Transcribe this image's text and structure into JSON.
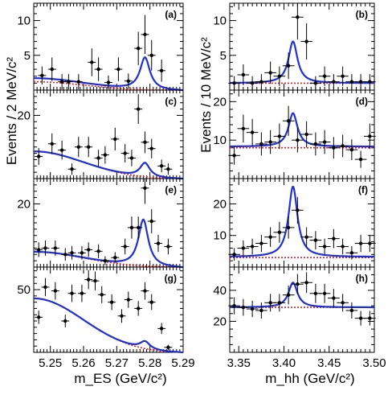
{
  "colors": {
    "fit": "#1f2fd6",
    "background": "#e02020",
    "data": "#000000"
  },
  "ylabel_left": "Events / 2 MeV/c²",
  "ylabel_right": "Events / 10 MeV/c²",
  "xlabel_left": "m_ES (GeV/c²)",
  "xlabel_right": "m_hh (GeV/c²)",
  "x_ticks_left": [
    "5.25",
    "5.26",
    "5.27",
    "5.28",
    "5.29"
  ],
  "x_ticks_right": [
    "3.35",
    "3.40",
    "3.45",
    "3.50"
  ],
  "chart_data": [
    {
      "type": "scatter",
      "label": "(a)",
      "xlim": [
        5.245,
        5.29
      ],
      "ylim": [
        0,
        12.5
      ],
      "yticks": [
        5,
        10
      ],
      "x": [
        5.2475,
        5.2505,
        5.2535,
        5.2555,
        5.2585,
        5.2625,
        5.2645,
        5.2675,
        5.2705,
        5.2735,
        5.2765,
        5.2785,
        5.2805,
        5.2835
      ],
      "y": [
        2.1,
        3.0,
        1.2,
        1.2,
        1.2,
        4.0,
        3.0,
        1.1,
        3.0,
        1.3,
        6.0,
        8.0,
        5.0,
        2.8
      ],
      "yerr": [
        1.3,
        1.7,
        1.1,
        1.1,
        1.1,
        2.0,
        1.7,
        1.0,
        1.7,
        1.1,
        2.4,
        2.8,
        2.2,
        1.6
      ],
      "fit_peak": 6.3,
      "fit_base": 1.7,
      "fit_x0": 5.2785,
      "bg_base": 1.2
    },
    {
      "type": "scatter",
      "label": "(c)",
      "xlim": [
        5.245,
        5.29
      ],
      "ylim": [
        0,
        28
      ],
      "yticks": [
        20
      ],
      "x": [
        5.2465,
        5.2505,
        5.2535,
        5.2565,
        5.2585,
        5.2615,
        5.2645,
        5.2665,
        5.2695,
        5.2725,
        5.2745,
        5.2765,
        5.2785,
        5.2805,
        5.2835,
        5.2855
      ],
      "y": [
        7.0,
        11.0,
        9.0,
        3.0,
        10.0,
        10.0,
        6.5,
        7.5,
        12.5,
        8.0,
        6.5,
        22.0,
        11.5,
        9.5,
        4.0,
        3.0
      ],
      "yerr": [
        2.7,
        3.3,
        3.0,
        1.8,
        3.2,
        3.2,
        2.6,
        2.8,
        3.6,
        2.9,
        2.6,
        4.7,
        3.4,
        3.1,
        2.0,
        1.8
      ],
      "fit_peak": 13.0,
      "fit_base": 8.6,
      "fit_x0": 5.2785,
      "bg_base": 8.6
    },
    {
      "type": "scatter",
      "label": "(e)",
      "xlim": [
        5.245,
        5.29
      ],
      "ylim": [
        0,
        28
      ],
      "yticks": [
        20
      ],
      "x": [
        5.2465,
        5.2485,
        5.2515,
        5.2545,
        5.2565,
        5.2595,
        5.2615,
        5.2645,
        5.2665,
        5.2695,
        5.2725,
        5.2745,
        5.2765,
        5.2785,
        5.2805,
        5.2825,
        5.2855
      ],
      "y": [
        5.5,
        6.0,
        6.0,
        4.0,
        4.5,
        4.5,
        5.5,
        5.0,
        2.0,
        3.0,
        6.5,
        12.5,
        12.5,
        25.0,
        14.5,
        7.5,
        6.5
      ],
      "yerr": [
        2.3,
        2.4,
        2.4,
        2.0,
        2.1,
        2.1,
        2.3,
        2.2,
        1.4,
        1.7,
        2.5,
        3.5,
        3.5,
        5.0,
        3.8,
        2.7,
        2.5
      ],
      "fit_peak": 19.5,
      "fit_base": 4.8,
      "fit_x0": 5.278,
      "bg_base": 4.8
    },
    {
      "type": "scatter",
      "label": "(g)",
      "xlim": [
        5.245,
        5.29
      ],
      "ylim": [
        0,
        68
      ],
      "yticks": [
        50
      ],
      "x": [
        5.2465,
        5.2485,
        5.2515,
        5.2545,
        5.2565,
        5.2595,
        5.2615,
        5.2635,
        5.2655,
        5.2685,
        5.2715,
        5.2735,
        5.2765,
        5.2785,
        5.2805,
        5.2835,
        5.2855
      ],
      "y": [
        28.0,
        52.0,
        49.0,
        25.0,
        47.0,
        47.0,
        58.0,
        57.0,
        46.0,
        40.0,
        29.0,
        42.0,
        35.0,
        49.0,
        40.0,
        19.0,
        4.0
      ],
      "yerr": [
        5.3,
        7.2,
        7.0,
        5.0,
        6.9,
        6.9,
        7.6,
        7.5,
        6.8,
        6.3,
        5.4,
        6.5,
        5.9,
        7.0,
        6.3,
        4.4,
        2.0
      ],
      "fit_peak": 49.0,
      "fit_base": 43.0,
      "fit_x0": 5.2785,
      "bg_base": 43.0
    },
    {
      "type": "scatter",
      "label": "(b)",
      "xlim": [
        3.34,
        3.5
      ],
      "ylim": [
        0,
        12.5
      ],
      "yticks": [
        5,
        10
      ],
      "x": [
        3.345,
        3.355,
        3.365,
        3.375,
        3.385,
        3.395,
        3.405,
        3.415,
        3.425,
        3.435,
        3.445,
        3.455,
        3.465,
        3.475,
        3.485,
        3.495
      ],
      "y": [
        1.0,
        2.2,
        1.0,
        1.2,
        2.5,
        2.0,
        3.5,
        10.5,
        7.0,
        1.0,
        2.0,
        1.2,
        2.0,
        1.2,
        1.2,
        1.2
      ],
      "yerr": [
        1.0,
        1.5,
        1.0,
        1.1,
        1.6,
        1.4,
        1.9,
        3.2,
        2.6,
        1.0,
        1.4,
        1.1,
        1.4,
        1.1,
        1.1,
        1.1
      ],
      "fit_peak": 7.0,
      "fit_base": 1.0,
      "fit_x0": 3.41,
      "bg_base": 1.0
    },
    {
      "type": "scatter",
      "label": "(d)",
      "xlim": [
        3.34,
        3.5
      ],
      "ylim": [
        0,
        23
      ],
      "yticks": [
        10,
        20
      ],
      "x": [
        3.345,
        3.355,
        3.365,
        3.375,
        3.385,
        3.395,
        3.405,
        3.415,
        3.425,
        3.435,
        3.445,
        3.455,
        3.465,
        3.475,
        3.485,
        3.495
      ],
      "y": [
        6.0,
        13.0,
        12.0,
        9.0,
        9.5,
        11.0,
        15.0,
        10.0,
        11.5,
        9.0,
        9.5,
        8.0,
        8.5,
        7.5,
        5.0,
        11.0
      ],
      "yerr": [
        2.4,
        3.6,
        3.5,
        3.0,
        3.1,
        3.3,
        3.9,
        3.2,
        3.4,
        3.0,
        3.1,
        2.8,
        2.9,
        2.7,
        2.2,
        3.3
      ],
      "fit_peak": 17.0,
      "fit_base": 8.3,
      "fit_x0": 3.41,
      "bg_base": 8.0
    },
    {
      "type": "scatter",
      "label": "(f)",
      "xlim": [
        3.34,
        3.5
      ],
      "ylim": [
        0,
        28
      ],
      "yticks": [
        10,
        20
      ],
      "x": [
        3.345,
        3.355,
        3.365,
        3.375,
        3.385,
        3.395,
        3.405,
        3.415,
        3.425,
        3.435,
        3.445,
        3.455,
        3.465,
        3.475,
        3.485,
        3.495
      ],
      "y": [
        4.0,
        6.0,
        6.5,
        7.5,
        9.5,
        11.0,
        12.5,
        18.0,
        9.5,
        8.5,
        6.5,
        9.0,
        6.5,
        4.5,
        7.5,
        7.5
      ],
      "yerr": [
        2.0,
        2.4,
        2.5,
        2.7,
        3.1,
        3.3,
        3.5,
        4.2,
        3.1,
        2.9,
        2.5,
        3.0,
        2.5,
        2.1,
        2.7,
        2.7
      ],
      "fit_peak": 25.5,
      "fit_base": 3.2,
      "fit_x0": 3.41,
      "bg_base": 3.0
    },
    {
      "type": "scatter",
      "label": "(h)",
      "xlim": [
        3.34,
        3.5
      ],
      "ylim": [
        0,
        55
      ],
      "yticks": [
        20,
        40
      ],
      "x": [
        3.345,
        3.355,
        3.365,
        3.375,
        3.385,
        3.395,
        3.405,
        3.415,
        3.425,
        3.435,
        3.445,
        3.455,
        3.465,
        3.475,
        3.485,
        3.495
      ],
      "y": [
        30.0,
        29.0,
        28.0,
        27.0,
        32.0,
        32.0,
        37.0,
        44.0,
        45.0,
        38.0,
        38.0,
        35.0,
        32.0,
        27.0,
        22.0,
        22.0
      ],
      "yerr": [
        5.5,
        5.4,
        5.3,
        5.2,
        5.7,
        5.7,
        6.1,
        6.6,
        6.7,
        6.2,
        6.2,
        5.9,
        5.7,
        5.2,
        4.7,
        4.7
      ],
      "fit_peak": 45.0,
      "fit_base": 29.0,
      "fit_x0": 3.41,
      "bg_base": 29.0
    }
  ]
}
